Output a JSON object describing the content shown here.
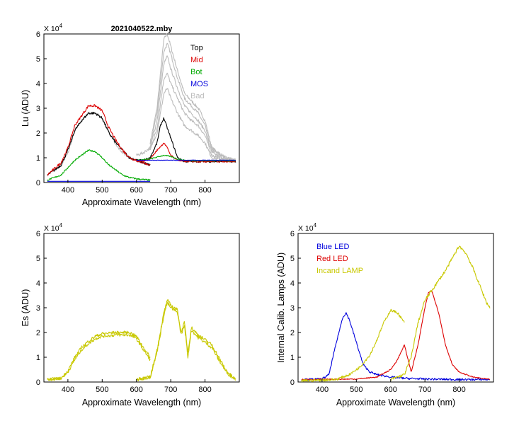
{
  "chart_data": [
    {
      "id": "lu",
      "type": "line",
      "title": "2021040522.mby",
      "xlabel": "Approximate Wavelength (nm)",
      "ylabel": "Lu (ADU)",
      "multiplier": "X 10",
      "multiplier_exp": "4",
      "xlim": [
        330,
        900
      ],
      "ylim": [
        0,
        6
      ],
      "xticks": [
        400,
        500,
        600,
        700,
        800
      ],
      "yticks": [
        0,
        1,
        2,
        3,
        4,
        5,
        6
      ],
      "legend": [
        {
          "label": "Top",
          "color": "#000000"
        },
        {
          "label": "Mid",
          "color": "#dd0000"
        },
        {
          "label": "Bot",
          "color": "#00aa00"
        },
        {
          "label": "MOS",
          "color": "#0000dd"
        },
        {
          "label": "Bad",
          "color": "#bbbbbb"
        }
      ],
      "series": [
        {
          "name": "Bad 1",
          "color": "#bbbbbb",
          "noise": 0.06,
          "x": [
            640,
            660,
            680,
            690,
            700,
            720,
            740,
            760,
            780,
            800,
            820,
            860,
            890
          ],
          "y": [
            1.6,
            3.0,
            5.8,
            6.0,
            5.5,
            4.5,
            3.6,
            3.3,
            3.0,
            2.5,
            1.4,
            1.0,
            0.9
          ]
        },
        {
          "name": "Bad 2",
          "color": "#bbbbbb",
          "noise": 0.06,
          "x": [
            640,
            660,
            680,
            690,
            700,
            720,
            740,
            760,
            780,
            800,
            820,
            860,
            890
          ],
          "y": [
            1.5,
            2.8,
            5.3,
            5.6,
            5.2,
            4.2,
            3.4,
            3.1,
            2.8,
            2.3,
            1.3,
            1.0,
            0.9
          ]
        },
        {
          "name": "Bad 3",
          "color": "#bbbbbb",
          "noise": 0.06,
          "x": [
            640,
            660,
            680,
            690,
            700,
            720,
            740,
            760,
            780,
            800,
            820,
            860,
            890
          ],
          "y": [
            1.4,
            2.5,
            4.8,
            5.1,
            4.6,
            3.8,
            3.1,
            2.8,
            2.5,
            2.1,
            1.2,
            0.95,
            0.9
          ]
        },
        {
          "name": "Bad 4",
          "color": "#bbbbbb",
          "noise": 0.06,
          "x": [
            640,
            660,
            680,
            690,
            700,
            720,
            740,
            760,
            780,
            800,
            820,
            860,
            890
          ],
          "y": [
            1.3,
            2.2,
            4.2,
            4.4,
            4.0,
            3.4,
            2.8,
            2.5,
            2.3,
            1.9,
            1.1,
            0.9,
            0.85
          ]
        },
        {
          "name": "Bad 5",
          "color": "#bbbbbb",
          "noise": 0.06,
          "x": [
            600,
            620,
            640,
            660,
            680,
            690,
            700,
            720,
            740,
            760,
            780,
            800,
            820,
            860,
            890
          ],
          "y": [
            1.1,
            1.2,
            1.4,
            2.0,
            3.6,
            3.8,
            3.4,
            2.8,
            2.3,
            2.1,
            1.9,
            1.6,
            1.0,
            0.9,
            0.85
          ]
        },
        {
          "name": "Bad 6",
          "color": "#bbbbbb",
          "noise": 0.05,
          "x": [
            340,
            380,
            400,
            420,
            440,
            460,
            480,
            500,
            520,
            540,
            560,
            580,
            600,
            620,
            640
          ],
          "y": [
            0.3,
            0.7,
            1.2,
            2.1,
            2.5,
            2.8,
            2.8,
            2.6,
            2.0,
            1.5,
            1.2,
            1.0,
            0.9,
            0.8,
            0.7
          ]
        },
        {
          "name": "Top",
          "color": "#000000",
          "noise": 0.05,
          "x": [
            340,
            380,
            400,
            420,
            440,
            460,
            480,
            500,
            520,
            540,
            560,
            580,
            600,
            620,
            640
          ],
          "y": [
            0.3,
            0.7,
            1.3,
            2.1,
            2.5,
            2.8,
            2.8,
            2.6,
            2.0,
            1.6,
            1.3,
            1.0,
            0.9,
            0.8,
            0.7
          ]
        },
        {
          "name": "Mid",
          "color": "#dd0000",
          "noise": 0.05,
          "x": [
            340,
            380,
            400,
            420,
            440,
            460,
            480,
            500,
            520,
            540,
            560,
            580,
            600,
            620,
            640
          ],
          "y": [
            0.3,
            0.8,
            1.4,
            2.3,
            2.7,
            3.1,
            3.1,
            2.9,
            2.2,
            1.7,
            1.3,
            1.0,
            0.9,
            0.8,
            0.7
          ]
        },
        {
          "name": "Bot",
          "color": "#00aa00",
          "noise": 0.03,
          "x": [
            340,
            380,
            400,
            420,
            440,
            460,
            480,
            500,
            520,
            540,
            560,
            580,
            600,
            620,
            640
          ],
          "y": [
            0.1,
            0.3,
            0.6,
            0.9,
            1.1,
            1.3,
            1.25,
            1.0,
            0.7,
            0.5,
            0.3,
            0.2,
            0.15,
            0.12,
            0.1
          ]
        },
        {
          "name": "Top (red)",
          "color": "#000000",
          "noise": 0.04,
          "x": [
            600,
            620,
            640,
            660,
            670,
            680,
            690,
            700,
            720,
            740,
            760,
            800,
            860,
            890
          ],
          "y": [
            0.9,
            0.9,
            1.0,
            1.6,
            2.3,
            2.6,
            2.2,
            1.8,
            1.0,
            0.85,
            0.85,
            0.85,
            0.85,
            0.85
          ]
        },
        {
          "name": "Mid (red)",
          "color": "#dd0000",
          "noise": 0.03,
          "x": [
            600,
            620,
            640,
            660,
            680,
            690,
            700,
            720,
            740,
            760,
            800,
            890
          ],
          "y": [
            0.85,
            0.85,
            0.95,
            1.3,
            1.6,
            1.4,
            1.1,
            0.9,
            0.85,
            0.85,
            0.85,
            0.85
          ]
        },
        {
          "name": "Bot (red)",
          "color": "#00aa00",
          "noise": 0.02,
          "x": [
            600,
            640,
            680,
            700,
            720,
            740,
            760,
            890
          ],
          "y": [
            0.9,
            0.95,
            1.1,
            1.05,
            0.95,
            0.9,
            0.88,
            0.88
          ]
        },
        {
          "name": "MOS (red)",
          "color": "#0000dd",
          "noise": 0.01,
          "x": [
            600,
            890
          ],
          "y": [
            0.9,
            0.9
          ]
        },
        {
          "name": "MOS (blue)",
          "color": "#0000dd",
          "noise": 0.0,
          "x": [
            340,
            640
          ],
          "y": [
            0.05,
            0.05
          ]
        }
      ]
    },
    {
      "id": "es",
      "type": "line",
      "title": "",
      "xlabel": "Approximate Wavelength (nm)",
      "ylabel": "Es  (ADU)",
      "multiplier": "X 10",
      "multiplier_exp": "4",
      "xlim": [
        330,
        900
      ],
      "ylim": [
        0,
        6
      ],
      "xticks": [
        400,
        500,
        600,
        700,
        800
      ],
      "yticks": [
        0,
        1,
        2,
        3,
        4,
        5,
        6
      ],
      "legend": [],
      "series": [
        {
          "name": "Es A",
          "color": "#c8c800",
          "noise": 0.06,
          "x": [
            340,
            380,
            400,
            420,
            440,
            460,
            480,
            500,
            540,
            580,
            600,
            620,
            640
          ],
          "y": [
            0.1,
            0.15,
            0.4,
            0.9,
            1.3,
            1.55,
            1.75,
            1.85,
            1.9,
            1.9,
            1.75,
            1.3,
            0.9
          ]
        },
        {
          "name": "Es B",
          "color": "#c8c800",
          "noise": 0.06,
          "x": [
            340,
            380,
            400,
            420,
            440,
            460,
            480,
            500,
            540,
            580,
            600,
            620,
            640
          ],
          "y": [
            0.1,
            0.15,
            0.45,
            1.0,
            1.4,
            1.65,
            1.85,
            1.95,
            2.0,
            2.0,
            1.85,
            1.4,
            1.0
          ]
        },
        {
          "name": "Es C",
          "color": "#c8c800",
          "noise": 0.07,
          "x": [
            600,
            640,
            660,
            680,
            690,
            700,
            720,
            730,
            740,
            750,
            760,
            780,
            800,
            820,
            840,
            860,
            870,
            880,
            890
          ],
          "y": [
            0.1,
            0.2,
            1.3,
            2.8,
            3.3,
            3.1,
            2.9,
            2.0,
            2.4,
            1.2,
            2.2,
            1.9,
            1.7,
            1.5,
            1.0,
            0.5,
            0.35,
            0.2,
            0.1
          ]
        },
        {
          "name": "Es D",
          "color": "#c8c800",
          "noise": 0.07,
          "x": [
            600,
            640,
            660,
            680,
            690,
            700,
            720,
            730,
            740,
            750,
            760,
            780,
            800,
            820,
            840,
            860,
            870,
            880,
            890
          ],
          "y": [
            0.1,
            0.2,
            1.2,
            2.7,
            3.2,
            3.0,
            2.8,
            1.9,
            2.3,
            1.0,
            2.1,
            1.8,
            1.6,
            1.4,
            0.9,
            0.45,
            0.3,
            0.2,
            0.1
          ]
        }
      ]
    },
    {
      "id": "cal",
      "type": "line",
      "title": "",
      "xlabel": "Approximate Wavelength (nm)",
      "ylabel": "Internal Calib. Lamps (ADU)",
      "multiplier": "X 10",
      "multiplier_exp": "4",
      "xlim": [
        330,
        900
      ],
      "ylim": [
        0,
        6
      ],
      "xticks": [
        400,
        500,
        600,
        700,
        800
      ],
      "yticks": [
        0,
        1,
        2,
        3,
        4,
        5,
        6
      ],
      "legend": [
        {
          "label": "Blue LED",
          "color": "#0000dd"
        },
        {
          "label": "Red LED",
          "color": "#dd0000"
        },
        {
          "label": "Incand LAMP",
          "color": "#c8c800"
        }
      ],
      "series": [
        {
          "name": "Blue LED",
          "color": "#0000dd",
          "noise": 0.04,
          "x": [
            340,
            400,
            420,
            440,
            460,
            470,
            480,
            500,
            520,
            540,
            560,
            600,
            640,
            700,
            800,
            890
          ],
          "y": [
            0.1,
            0.12,
            0.3,
            1.5,
            2.6,
            2.8,
            2.5,
            1.6,
            0.7,
            0.4,
            0.3,
            0.2,
            0.15,
            0.12,
            0.1,
            0.1
          ]
        },
        {
          "name": "Red LED",
          "color": "#dd0000",
          "noise": 0.02,
          "x": [
            340,
            500,
            560,
            600,
            620,
            640,
            660,
            680,
            700,
            710,
            720,
            740,
            760,
            780,
            800,
            840,
            890
          ],
          "y": [
            0.1,
            0.12,
            0.2,
            0.5,
            0.9,
            1.5,
            0.4,
            1.5,
            3.0,
            3.6,
            3.7,
            2.8,
            1.5,
            0.7,
            0.4,
            0.2,
            0.1
          ]
        },
        {
          "name": "Incand LAMP",
          "color": "#c8c800",
          "noise": 0.05,
          "x": [
            340,
            440,
            480,
            510,
            540,
            560,
            580,
            600,
            620,
            640
          ],
          "y": [
            0.05,
            0.1,
            0.3,
            0.6,
            1.1,
            1.7,
            2.4,
            2.9,
            2.8,
            2.4
          ]
        },
        {
          "name": "Incand LAMP (red)",
          "color": "#c8c800",
          "noise": 0.06,
          "x": [
            600,
            640,
            660,
            680,
            700,
            720,
            740,
            760,
            780,
            800,
            820,
            840,
            860,
            880,
            890
          ],
          "y": [
            0.1,
            0.3,
            1.0,
            2.4,
            3.3,
            3.7,
            4.1,
            4.5,
            5.0,
            5.5,
            5.2,
            4.6,
            3.9,
            3.2,
            3.0
          ]
        }
      ]
    }
  ]
}
